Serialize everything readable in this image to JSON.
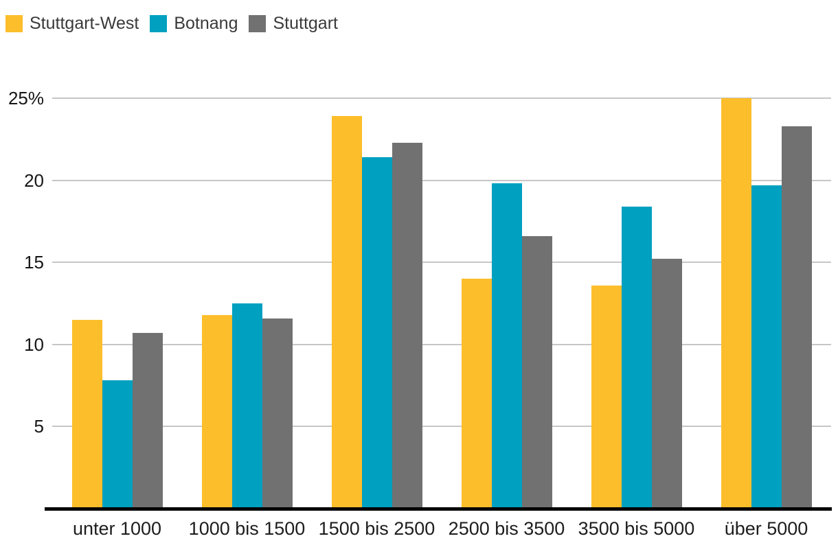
{
  "legend": {
    "position": "top-left"
  },
  "colors": {
    "series_yellow": "#FDBE2B",
    "series_teal": "#00A0C0",
    "series_gray": "#717171",
    "gridline": "#C6C6C6",
    "baseline": "#000000",
    "axis_text": "#161616"
  },
  "chart_data": {
    "type": "bar",
    "title": "",
    "xlabel": "",
    "ylabel": "",
    "grid": true,
    "legend_position": "top-left",
    "ylim": [
      0,
      25
    ],
    "yticks": [
      {
        "value": 25,
        "label": "25%"
      },
      {
        "value": 20,
        "label": "20"
      },
      {
        "value": 15,
        "label": "15"
      },
      {
        "value": 10,
        "label": "10"
      },
      {
        "value": 5,
        "label": "5"
      }
    ],
    "categories": [
      "unter 1000",
      "1000 bis 1500",
      "1500 bis 2500",
      "2500 bis 3500",
      "3500 bis 5000",
      "über 5000"
    ],
    "series": [
      {
        "name": "Stuttgart-West",
        "color": "#FDBE2B",
        "values": [
          11.5,
          11.8,
          23.9,
          14.0,
          13.6,
          25.0
        ]
      },
      {
        "name": "Botnang",
        "color": "#00A0C0",
        "values": [
          7.8,
          12.5,
          21.4,
          19.8,
          18.4,
          19.7
        ]
      },
      {
        "name": "Stuttgart",
        "color": "#717171",
        "values": [
          10.7,
          11.6,
          22.3,
          16.6,
          15.2,
          23.3
        ]
      }
    ]
  }
}
